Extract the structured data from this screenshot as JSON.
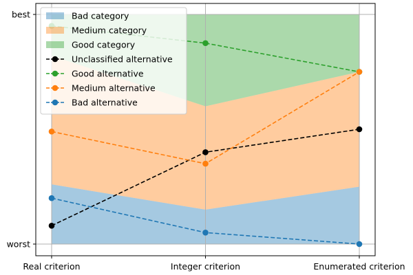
{
  "chart_data": {
    "type": "area",
    "categories": [
      "Real criterion",
      "Integer criterion",
      "Enumerated criterion"
    ],
    "yticks": [
      "worst",
      "best"
    ],
    "ylim": [
      0,
      1
    ],
    "grid": true,
    "legend_position": "top-left",
    "bands": [
      {
        "name": "Bad category",
        "color": "#1f77b4",
        "lower": [
          0.0,
          0.0,
          0.0
        ],
        "upper": [
          0.26,
          0.15,
          0.25
        ]
      },
      {
        "name": "Medium category",
        "color": "#ff7f0e",
        "lower": [
          0.26,
          0.15,
          0.25
        ],
        "upper": [
          0.82,
          0.6,
          0.75
        ]
      },
      {
        "name": "Good category",
        "color": "#2ca02c",
        "lower": [
          0.82,
          0.6,
          0.75
        ],
        "upper": [
          1.0,
          1.0,
          1.0
        ]
      }
    ],
    "series": [
      {
        "name": "Unclassified alternative",
        "color": "#000000",
        "values": [
          0.08,
          0.4,
          0.5
        ]
      },
      {
        "name": "Good alternative",
        "color": "#2ca02c",
        "values": [
          0.95,
          0.875,
          0.75
        ]
      },
      {
        "name": "Medium alternative",
        "color": "#ff7f0e",
        "values": [
          0.49,
          0.35,
          0.75
        ]
      },
      {
        "name": "Bad alternative",
        "color": "#1f77b4",
        "values": [
          0.2,
          0.05,
          0.0
        ]
      }
    ]
  }
}
